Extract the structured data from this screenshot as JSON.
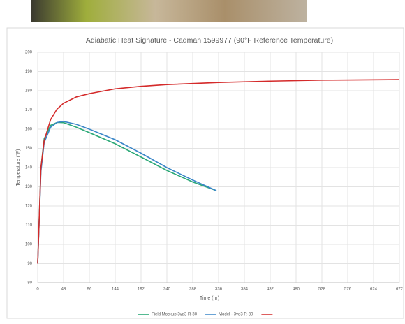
{
  "chart_data": {
    "type": "line",
    "title": "Adiabatic Heat Signature - Cadman 1599977 (90°F Reference Temperature)",
    "x_label": "Time (hr)",
    "y_label": "Temperature (°F)",
    "xlim": [
      0,
      672
    ],
    "xticks": [
      0,
      48,
      96,
      144,
      192,
      240,
      288,
      336,
      384,
      432,
      480,
      528,
      576,
      624,
      672
    ],
    "ylim": [
      80,
      200
    ],
    "yticks": [
      80,
      90,
      100,
      110,
      120,
      130,
      140,
      150,
      160,
      170,
      180,
      190,
      200
    ],
    "grid": true,
    "legend": "bottom",
    "series": [
      {
        "name": "Field Mockup 3yd3 R-30",
        "color": "#2aa876",
        "x": [
          0,
          6,
          12,
          24,
          36,
          48,
          72,
          96,
          144,
          192,
          240,
          288,
          332
        ],
        "values": [
          90,
          140,
          155,
          162,
          163.5,
          163.4,
          161,
          158.2,
          152.4,
          145.5,
          138.5,
          132.5,
          128
        ]
      },
      {
        "name": "Model - 3yd3 R-30",
        "color": "#3a86c8",
        "x": [
          0,
          6,
          12,
          24,
          36,
          48,
          72,
          96,
          144,
          192,
          240,
          288,
          332
        ],
        "values": [
          90,
          138,
          153,
          161,
          163.5,
          164,
          162.5,
          160,
          154.5,
          147.5,
          140,
          133.5,
          128
        ]
      },
      {
        "color": "#d42a2a",
        "x": [
          0,
          6,
          12,
          24,
          36,
          48,
          72,
          96,
          144,
          192,
          240,
          336,
          432,
          528,
          672
        ],
        "values": [
          90,
          140,
          154,
          165,
          170.5,
          173.5,
          176.8,
          178.5,
          181,
          182.3,
          183.2,
          184.3,
          185,
          185.5,
          185.8
        ]
      }
    ]
  }
}
